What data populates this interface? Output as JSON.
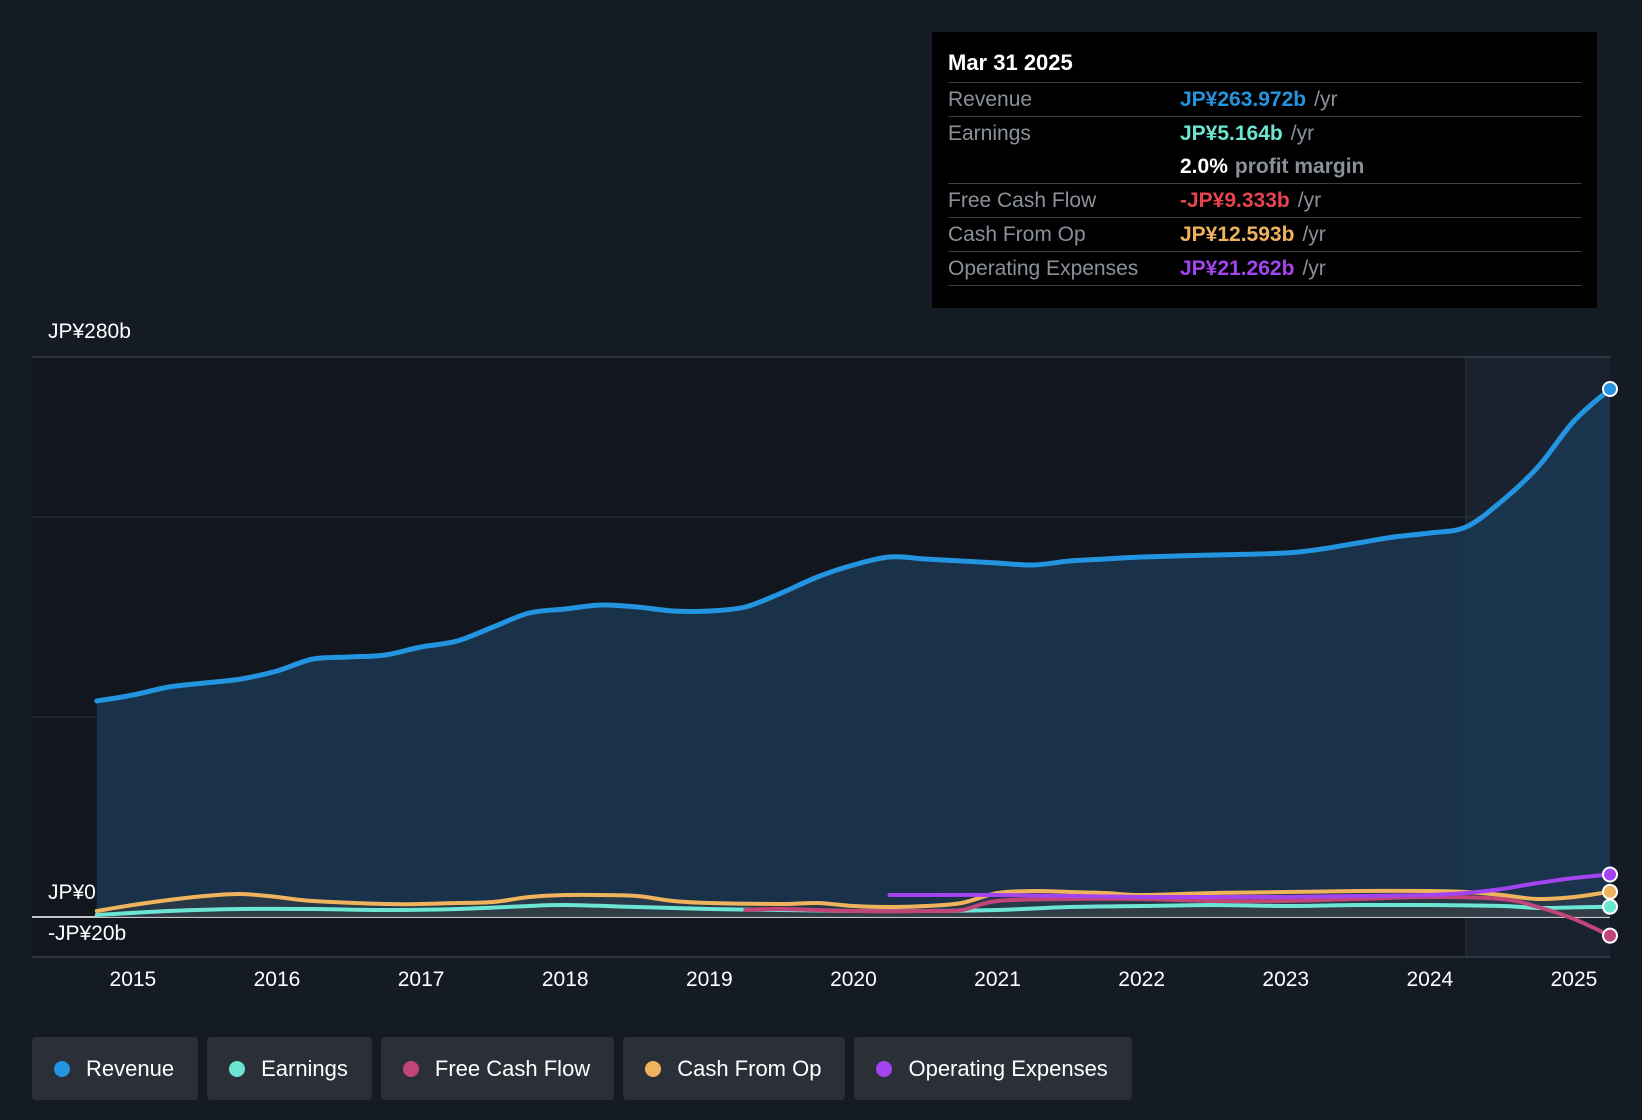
{
  "tooltip": {
    "date": "Mar 31 2025",
    "rows": [
      {
        "label": "Revenue",
        "value": "JP¥263.972b",
        "unit": "/yr",
        "color": "#2394df"
      },
      {
        "label": "Earnings",
        "value": "JP¥5.164b",
        "unit": "/yr",
        "color": "#6ce5d2"
      },
      {
        "label": "",
        "value": "2.0%",
        "unit": "profit margin",
        "color": "#ffffff"
      },
      {
        "label": "Free Cash Flow",
        "value": "-JP¥9.333b",
        "unit": "/yr",
        "color": "#e64550"
      },
      {
        "label": "Cash From Op",
        "value": "JP¥12.593b",
        "unit": "/yr",
        "color": "#f0b35d"
      },
      {
        "label": "Operating Expenses",
        "value": "JP¥21.262b",
        "unit": "/yr",
        "color": "#a443f0"
      }
    ]
  },
  "legend": [
    {
      "label": "Revenue",
      "color": "#2394df"
    },
    {
      "label": "Earnings",
      "color": "#6ce5d2"
    },
    {
      "label": "Free Cash Flow",
      "color": "#c2457a"
    },
    {
      "label": "Cash From Op",
      "color": "#f0b35d"
    },
    {
      "label": "Operating Expenses",
      "color": "#a443f0"
    }
  ],
  "chart_data": {
    "type": "line",
    "title": "",
    "xlabel": "",
    "ylabel": "",
    "ylim": [
      -20,
      280
    ],
    "y_tick_labels": [
      "JP¥280b",
      "JP¥0",
      "-JP¥20b"
    ],
    "x_tick_labels": [
      "2015",
      "2016",
      "2017",
      "2018",
      "2019",
      "2020",
      "2021",
      "2022",
      "2023",
      "2024",
      "2025"
    ],
    "x_ticks": [
      2015,
      2016,
      2017,
      2018,
      2019,
      2020,
      2021,
      2022,
      2023,
      2024,
      2025
    ],
    "xlim": [
      2014.3,
      2025.25
    ],
    "highlight_start": 2024.25,
    "series": [
      {
        "name": "Revenue",
        "color": "#2394df",
        "points": [
          [
            2014.75,
            108
          ],
          [
            2015.0,
            111
          ],
          [
            2015.25,
            115
          ],
          [
            2015.5,
            117
          ],
          [
            2015.75,
            119
          ],
          [
            2016.0,
            123
          ],
          [
            2016.25,
            129
          ],
          [
            2016.5,
            130
          ],
          [
            2016.75,
            131
          ],
          [
            2017.0,
            135
          ],
          [
            2017.25,
            138
          ],
          [
            2017.5,
            145
          ],
          [
            2017.75,
            152
          ],
          [
            2018.0,
            154
          ],
          [
            2018.25,
            156
          ],
          [
            2018.5,
            155
          ],
          [
            2018.75,
            153
          ],
          [
            2019.0,
            153
          ],
          [
            2019.25,
            155
          ],
          [
            2019.5,
            162
          ],
          [
            2019.75,
            170
          ],
          [
            2020.0,
            176
          ],
          [
            2020.25,
            180
          ],
          [
            2020.5,
            179
          ],
          [
            2020.75,
            178
          ],
          [
            2021.0,
            177
          ],
          [
            2021.25,
            176
          ],
          [
            2021.5,
            178
          ],
          [
            2021.75,
            179
          ],
          [
            2022.0,
            180
          ],
          [
            2022.5,
            181
          ],
          [
            2023.0,
            182
          ],
          [
            2023.25,
            184
          ],
          [
            2023.5,
            187
          ],
          [
            2023.75,
            190
          ],
          [
            2024.0,
            192
          ],
          [
            2024.25,
            195
          ],
          [
            2024.5,
            208
          ],
          [
            2024.75,
            225
          ],
          [
            2025.0,
            248
          ],
          [
            2025.25,
            264
          ]
        ]
      },
      {
        "name": "Earnings",
        "color": "#6ce5d2",
        "points": [
          [
            2014.75,
            1
          ],
          [
            2015.25,
            3
          ],
          [
            2015.75,
            4
          ],
          [
            2016.25,
            4
          ],
          [
            2016.75,
            3.5
          ],
          [
            2017.25,
            4
          ],
          [
            2017.75,
            5.5
          ],
          [
            2018.0,
            6
          ],
          [
            2018.5,
            5
          ],
          [
            2019.0,
            4
          ],
          [
            2019.5,
            3.5
          ],
          [
            2020.0,
            3
          ],
          [
            2020.5,
            3
          ],
          [
            2021.0,
            3.5
          ],
          [
            2021.5,
            5
          ],
          [
            2022.0,
            5.5
          ],
          [
            2022.5,
            6
          ],
          [
            2023.0,
            5.5
          ],
          [
            2023.5,
            6
          ],
          [
            2024.0,
            6
          ],
          [
            2024.5,
            5.5
          ],
          [
            2024.75,
            4.5
          ],
          [
            2025.0,
            4.8
          ],
          [
            2025.25,
            5.164
          ]
        ]
      },
      {
        "name": "Free Cash Flow",
        "color": "#c2457a",
        "points": [
          [
            2019.25,
            3.5
          ],
          [
            2019.5,
            4
          ],
          [
            2020.0,
            3
          ],
          [
            2020.5,
            3
          ],
          [
            2020.75,
            3.5
          ],
          [
            2021.0,
            8
          ],
          [
            2021.5,
            9
          ],
          [
            2022.0,
            9
          ],
          [
            2022.5,
            8
          ],
          [
            2023.0,
            8
          ],
          [
            2023.5,
            9
          ],
          [
            2024.0,
            10
          ],
          [
            2024.5,
            9
          ],
          [
            2024.75,
            5
          ],
          [
            2025.0,
            -1
          ],
          [
            2025.25,
            -9.333
          ]
        ]
      },
      {
        "name": "Cash From Op",
        "color": "#f0b35d",
        "points": [
          [
            2014.75,
            3
          ],
          [
            2015.0,
            6
          ],
          [
            2015.25,
            8.5
          ],
          [
            2015.5,
            10.5
          ],
          [
            2015.75,
            11.5
          ],
          [
            2016.0,
            10
          ],
          [
            2016.25,
            8
          ],
          [
            2016.75,
            6.5
          ],
          [
            2017.0,
            6.5
          ],
          [
            2017.25,
            7
          ],
          [
            2017.5,
            7.5
          ],
          [
            2017.75,
            10
          ],
          [
            2018.0,
            11
          ],
          [
            2018.25,
            11
          ],
          [
            2018.5,
            10.5
          ],
          [
            2018.75,
            8
          ],
          [
            2019.0,
            7
          ],
          [
            2019.5,
            6.5
          ],
          [
            2019.75,
            7
          ],
          [
            2020.0,
            5.5
          ],
          [
            2020.25,
            5
          ],
          [
            2020.5,
            5.5
          ],
          [
            2020.75,
            7
          ],
          [
            2021.0,
            12
          ],
          [
            2021.25,
            13
          ],
          [
            2021.5,
            12.5
          ],
          [
            2021.75,
            12
          ],
          [
            2022.0,
            11
          ],
          [
            2022.5,
            12
          ],
          [
            2023.0,
            12.5
          ],
          [
            2023.5,
            13
          ],
          [
            2024.0,
            13
          ],
          [
            2024.25,
            12.5
          ],
          [
            2024.5,
            11
          ],
          [
            2024.75,
            9
          ],
          [
            2025.0,
            10
          ],
          [
            2025.25,
            12.593
          ]
        ]
      },
      {
        "name": "Operating Expenses",
        "color": "#a443f0",
        "points": [
          [
            2020.25,
            11
          ],
          [
            2020.5,
            11
          ],
          [
            2021.0,
            11
          ],
          [
            2021.5,
            10.5
          ],
          [
            2022.0,
            10
          ],
          [
            2022.5,
            10
          ],
          [
            2023.0,
            10
          ],
          [
            2023.5,
            10.5
          ],
          [
            2024.0,
            11
          ],
          [
            2024.25,
            12
          ],
          [
            2024.5,
            14
          ],
          [
            2024.75,
            17
          ],
          [
            2025.0,
            19.5
          ],
          [
            2025.25,
            21.262
          ]
        ]
      }
    ]
  }
}
